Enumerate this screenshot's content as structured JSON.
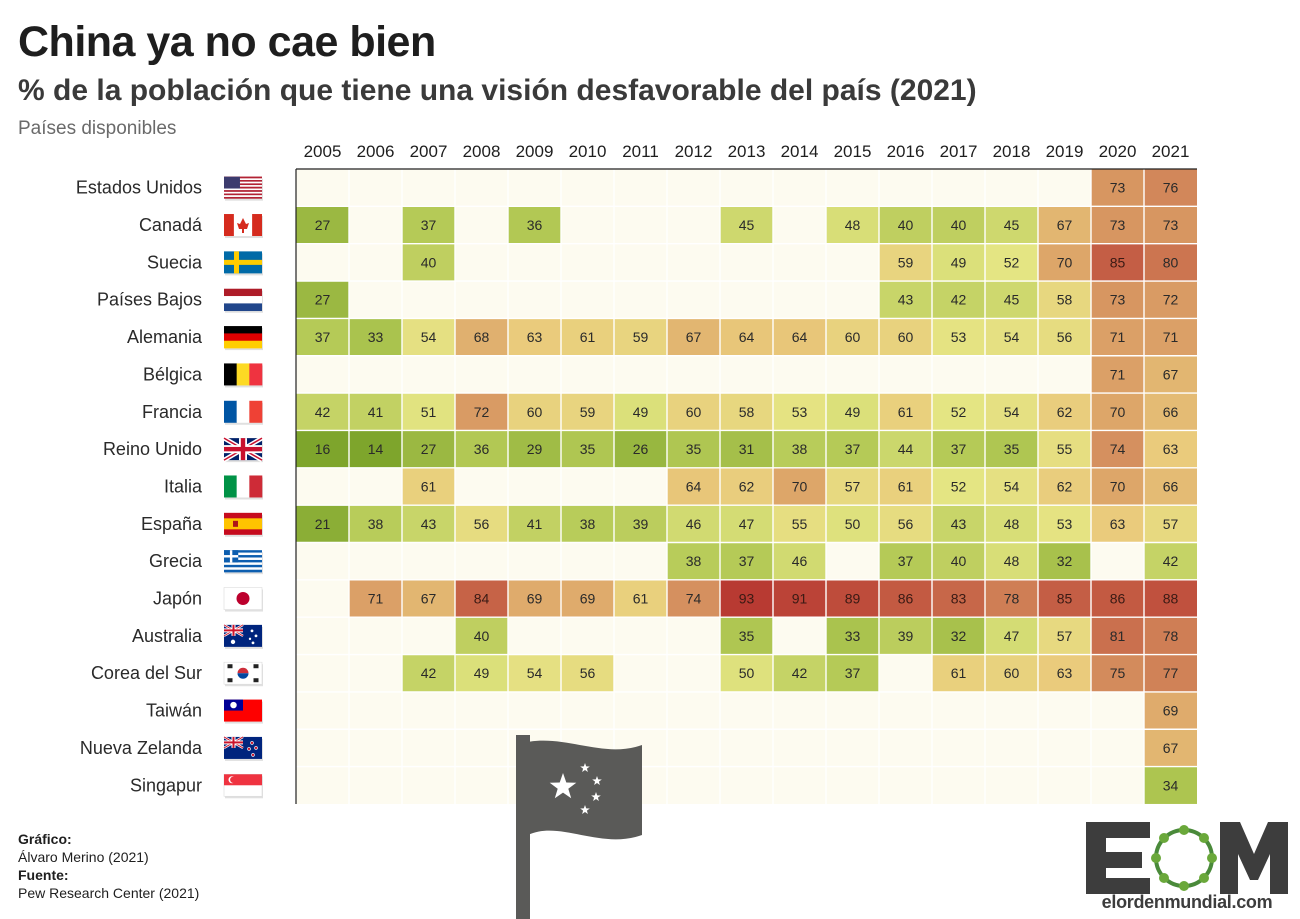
{
  "header": {
    "title": "China ya no cae bien",
    "subtitle": "% de la población que tiene una visión desfavorable del país (2021)",
    "note": "Países disponibles"
  },
  "credits": {
    "grafico_label": "Gráfico:",
    "grafico_value": "Álvaro Merino (2021)",
    "fuente_label": "Fuente:",
    "fuente_value": "Pew Research Center (2021)"
  },
  "logo": {
    "letters": "EOM",
    "url": "elordenmundial.com"
  },
  "colors": {
    "cell_empty": "#fdfbf0",
    "scale": [
      "#7ea52c",
      "#b2c854",
      "#e4e583",
      "#eacb7c",
      "#d38b5c",
      "#b83a32"
    ],
    "border": "#222222",
    "flag_pole": "#5a5a58"
  },
  "chart_data": {
    "type": "table",
    "title": "China ya no cae bien",
    "subtitle": "% de la población que tiene una visión desfavorable del país (2021)",
    "columns": [
      "2005",
      "2006",
      "2007",
      "2008",
      "2009",
      "2010",
      "2011",
      "2012",
      "2013",
      "2014",
      "2015",
      "2016",
      "2017",
      "2018",
      "2019",
      "2020",
      "2021"
    ],
    "rows": [
      {
        "country": "Estados Unidos",
        "flag": "flag-usa",
        "values": [
          null,
          null,
          null,
          null,
          null,
          null,
          null,
          null,
          null,
          null,
          null,
          null,
          null,
          null,
          null,
          73,
          76
        ]
      },
      {
        "country": "Canadá",
        "flag": "flag-canada",
        "values": [
          27,
          null,
          37,
          null,
          36,
          null,
          null,
          null,
          45,
          null,
          48,
          40,
          40,
          45,
          67,
          73,
          73
        ]
      },
      {
        "country": "Suecia",
        "flag": "flag-sweden",
        "values": [
          null,
          null,
          40,
          null,
          null,
          null,
          null,
          null,
          null,
          null,
          null,
          59,
          49,
          52,
          70,
          85,
          80
        ]
      },
      {
        "country": "Países Bajos",
        "flag": "flag-netherlands",
        "values": [
          27,
          null,
          null,
          null,
          null,
          null,
          null,
          null,
          null,
          null,
          null,
          43,
          42,
          45,
          58,
          73,
          72
        ]
      },
      {
        "country": "Alemania",
        "flag": "flag-germany",
        "values": [
          37,
          33,
          54,
          68,
          63,
          61,
          59,
          67,
          64,
          64,
          60,
          60,
          53,
          54,
          56,
          71,
          71
        ]
      },
      {
        "country": "Bélgica",
        "flag": "flag-belgium",
        "values": [
          null,
          null,
          null,
          null,
          null,
          null,
          null,
          null,
          null,
          null,
          null,
          null,
          null,
          null,
          null,
          71,
          67
        ]
      },
      {
        "country": "Francia",
        "flag": "flag-france",
        "values": [
          42,
          41,
          51,
          72,
          60,
          59,
          49,
          60,
          58,
          53,
          49,
          61,
          52,
          54,
          62,
          70,
          66
        ]
      },
      {
        "country": "Reino Unido",
        "flag": "flag-uk",
        "values": [
          16,
          14,
          27,
          36,
          29,
          35,
          26,
          35,
          31,
          38,
          37,
          44,
          37,
          35,
          55,
          74,
          63
        ]
      },
      {
        "country": "Italia",
        "flag": "flag-italy",
        "values": [
          null,
          null,
          61,
          null,
          null,
          null,
          null,
          64,
          62,
          70,
          57,
          61,
          52,
          54,
          62,
          70,
          66
        ]
      },
      {
        "country": "España",
        "flag": "flag-spain",
        "values": [
          21,
          38,
          43,
          56,
          41,
          38,
          39,
          46,
          47,
          55,
          50,
          56,
          43,
          48,
          53,
          63,
          57
        ]
      },
      {
        "country": "Grecia",
        "flag": "flag-greece",
        "values": [
          null,
          null,
          null,
          null,
          null,
          null,
          null,
          38,
          37,
          46,
          null,
          37,
          40,
          48,
          32,
          null,
          42
        ]
      },
      {
        "country": "Japón",
        "flag": "flag-japan",
        "values": [
          null,
          71,
          67,
          84,
          69,
          69,
          61,
          74,
          93,
          91,
          89,
          86,
          83,
          78,
          85,
          86,
          88
        ]
      },
      {
        "country": "Australia",
        "flag": "flag-australia",
        "values": [
          null,
          null,
          null,
          40,
          null,
          null,
          null,
          null,
          35,
          null,
          33,
          39,
          32,
          47,
          57,
          81,
          78
        ]
      },
      {
        "country": "Corea del Sur",
        "flag": "flag-south-korea",
        "values": [
          null,
          null,
          42,
          49,
          54,
          56,
          null,
          null,
          50,
          42,
          37,
          null,
          61,
          60,
          63,
          75,
          77
        ]
      },
      {
        "country": "Taiwán",
        "flag": "flag-taiwan",
        "values": [
          null,
          null,
          null,
          null,
          null,
          null,
          null,
          null,
          null,
          null,
          null,
          null,
          null,
          null,
          null,
          null,
          69
        ]
      },
      {
        "country": "Nueva Zelanda",
        "flag": "flag-new-zealand",
        "values": [
          null,
          null,
          null,
          null,
          null,
          null,
          null,
          null,
          null,
          null,
          null,
          null,
          null,
          null,
          null,
          null,
          67
        ]
      },
      {
        "country": "Singapur",
        "flag": "flag-singapore",
        "values": [
          null,
          null,
          null,
          null,
          null,
          null,
          null,
          null,
          null,
          null,
          null,
          null,
          null,
          null,
          null,
          null,
          34
        ]
      }
    ],
    "color_scale": "green (low) to red (high)",
    "legend": "none"
  }
}
